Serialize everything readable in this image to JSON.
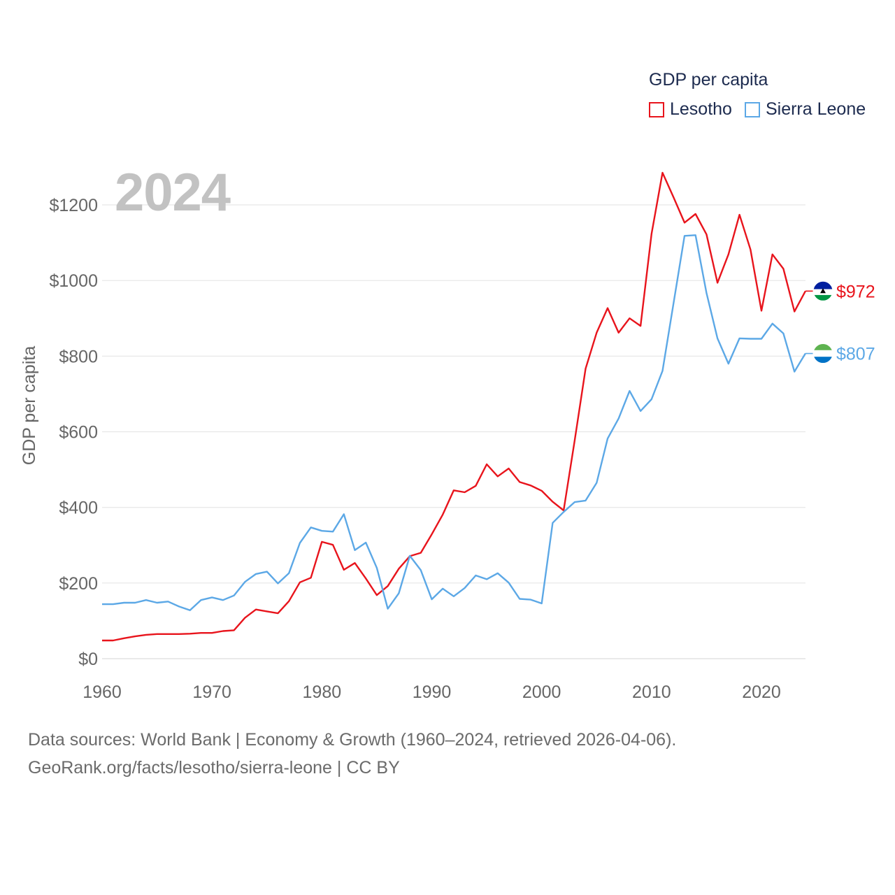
{
  "chart_data": {
    "type": "line",
    "title": "GDP per capita",
    "highlight_year": "2024",
    "ylabel": "GDP per capita",
    "xlabel": "",
    "ylim": [
      0,
      1300
    ],
    "xlim": [
      1960,
      2024
    ],
    "yticks": [
      {
        "value": 0,
        "label": "$0"
      },
      {
        "value": 200,
        "label": "$200"
      },
      {
        "value": 400,
        "label": "$400"
      },
      {
        "value": 600,
        "label": "$600"
      },
      {
        "value": 800,
        "label": "$800"
      },
      {
        "value": 1000,
        "label": "$1000"
      },
      {
        "value": 1200,
        "label": "$1200"
      }
    ],
    "xticks": [
      {
        "value": 1960,
        "label": "1960"
      },
      {
        "value": 1970,
        "label": "1970"
      },
      {
        "value": 1980,
        "label": "1980"
      },
      {
        "value": 1990,
        "label": "1990"
      },
      {
        "value": 2000,
        "label": "2000"
      },
      {
        "value": 2010,
        "label": "2010"
      },
      {
        "value": 2020,
        "label": "2020"
      }
    ],
    "grid": true,
    "legend_position": "top-right",
    "x": [
      1960,
      1961,
      1962,
      1963,
      1964,
      1965,
      1966,
      1967,
      1968,
      1969,
      1970,
      1971,
      1972,
      1973,
      1974,
      1975,
      1976,
      1977,
      1978,
      1979,
      1980,
      1981,
      1982,
      1983,
      1984,
      1985,
      1986,
      1987,
      1988,
      1989,
      1990,
      1991,
      1992,
      1993,
      1994,
      1995,
      1996,
      1997,
      1998,
      1999,
      2000,
      2001,
      2002,
      2003,
      2004,
      2005,
      2006,
      2007,
      2008,
      2009,
      2010,
      2011,
      2012,
      2013,
      2014,
      2015,
      2016,
      2017,
      2018,
      2019,
      2020,
      2021,
      2022,
      2023,
      2024
    ],
    "series": [
      {
        "name": "Lesotho",
        "color": "#e8141c",
        "end_label": "$972",
        "values": [
          48,
          48,
          54,
          59,
          63,
          65,
          65,
          65,
          66,
          68,
          68,
          73,
          75,
          108,
          130,
          125,
          120,
          152,
          202,
          214,
          309,
          301,
          235,
          253,
          212,
          168,
          192,
          238,
          271,
          280,
          329,
          381,
          445,
          440,
          457,
          514,
          482,
          503,
          467,
          458,
          444,
          415,
          392,
          576,
          767,
          862,
          927,
          862,
          900,
          880,
          1123,
          1285,
          1220,
          1153,
          1176,
          1122,
          994,
          1069,
          1174,
          1082,
          920,
          1069,
          1031,
          918,
          972
        ]
      },
      {
        "name": "Sierra Leone",
        "color": "#5ca8e6",
        "end_label": "$807",
        "values": [
          144,
          144,
          148,
          148,
          155,
          148,
          151,
          138,
          128,
          155,
          162,
          155,
          167,
          203,
          224,
          230,
          199,
          226,
          306,
          347,
          338,
          336,
          382,
          287,
          307,
          240,
          132,
          173,
          272,
          234,
          157,
          185,
          165,
          187,
          220,
          210,
          226,
          201,
          158,
          156,
          146,
          359,
          388,
          414,
          418,
          465,
          582,
          635,
          708,
          655,
          686,
          761,
          940,
          1118,
          1120,
          967,
          847,
          780,
          847,
          846,
          846,
          886,
          860,
          759,
          807
        ]
      }
    ],
    "flags": {
      "lesotho": {
        "colors": [
          "#00209f",
          "#ffffff",
          "#009543"
        ]
      },
      "sierra_leone": {
        "colors": [
          "#5eb350",
          "#ffffff",
          "#0072c6"
        ]
      }
    }
  },
  "legend": {
    "title": "GDP per capita",
    "items": [
      "Lesotho",
      "Sierra Leone"
    ]
  },
  "footer": {
    "line1": "Data sources: World Bank | Economy & Growth (1960–2024, retrieved 2026-04-06).",
    "line2": "GeoRank.org/facts/lesotho/sierra-leone | CC BY"
  }
}
